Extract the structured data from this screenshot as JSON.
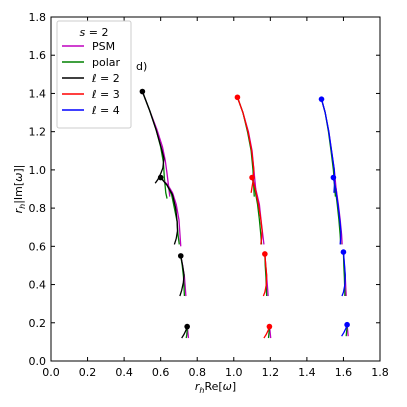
{
  "chart_data": {
    "type": "line",
    "panel_label": "d)",
    "xlabel": "r_h Re[ω]",
    "ylabel": "r_h |Im[ω]|",
    "xlim": [
      0.0,
      1.8
    ],
    "ylim": [
      0.0,
      1.8
    ],
    "xticks": [
      "0.0",
      "0.2",
      "0.4",
      "0.6",
      "0.8",
      "1.0",
      "1.2",
      "1.4",
      "1.6",
      "1.8"
    ],
    "yticks": [
      "0.0",
      "0.2",
      "0.4",
      "0.6",
      "0.8",
      "1.0",
      "1.2",
      "1.4",
      "1.6",
      "1.8"
    ],
    "grid": false,
    "legend": {
      "placement": "top-left",
      "title": "s = 2",
      "entries": [
        {
          "label": "PSM",
          "color": "#bf00bf"
        },
        {
          "label": "polar",
          "color": "#008000"
        },
        {
          "label": "ℓ = 2",
          "color": "#000000"
        },
        {
          "label": "ℓ = 3",
          "color": "#ff0000"
        },
        {
          "label": "ℓ = 4",
          "color": "#0000ff"
        }
      ]
    },
    "series": [
      {
        "group": "ℓ = 2",
        "kind": "PSM",
        "color": "#bf00bf",
        "points": [
          [
            0.5,
            1.41
          ],
          [
            0.54,
            1.31
          ],
          [
            0.58,
            1.21
          ],
          [
            0.61,
            1.12
          ],
          [
            0.625,
            1.05
          ],
          [
            0.635,
            0.98
          ],
          [
            0.645,
            0.9
          ],
          [
            0.65,
            0.86
          ]
        ]
      },
      {
        "group": "ℓ = 2",
        "kind": "polar",
        "color": "#008000",
        "points": [
          [
            0.5,
            1.41
          ],
          [
            0.54,
            1.31
          ],
          [
            0.575,
            1.21
          ],
          [
            0.6,
            1.12
          ],
          [
            0.615,
            1.04
          ],
          [
            0.62,
            0.96
          ],
          [
            0.628,
            0.88
          ],
          [
            0.635,
            0.85
          ]
        ]
      },
      {
        "group": "ℓ = 2",
        "kind": "ℓ",
        "color": "#000000",
        "points": [
          [
            0.5,
            1.41
          ],
          [
            0.54,
            1.31
          ],
          [
            0.575,
            1.21
          ],
          [
            0.605,
            1.11
          ],
          [
            0.618,
            1.06
          ],
          [
            0.612,
            1.01
          ],
          [
            0.6,
            0.98
          ],
          [
            0.585,
            0.95
          ],
          [
            0.57,
            0.93
          ]
        ]
      },
      {
        "group": "ℓ = 2",
        "kind": "PSM",
        "color": "#bf00bf",
        "points": [
          [
            0.6,
            0.96
          ],
          [
            0.64,
            0.92
          ],
          [
            0.665,
            0.88
          ],
          [
            0.685,
            0.82
          ],
          [
            0.7,
            0.74
          ],
          [
            0.705,
            0.67
          ],
          [
            0.71,
            0.6
          ]
        ]
      },
      {
        "group": "ℓ = 2",
        "kind": "polar",
        "color": "#008000",
        "points": [
          [
            0.6,
            0.96
          ],
          [
            0.635,
            0.92
          ],
          [
            0.66,
            0.87
          ],
          [
            0.675,
            0.8
          ],
          [
            0.69,
            0.73
          ],
          [
            0.695,
            0.66
          ],
          [
            0.702,
            0.61
          ]
        ]
      },
      {
        "group": "ℓ = 2",
        "kind": "ℓ",
        "color": "#000000",
        "points": [
          [
            0.6,
            0.96
          ],
          [
            0.635,
            0.92
          ],
          [
            0.665,
            0.87
          ],
          [
            0.682,
            0.8
          ],
          [
            0.69,
            0.73
          ],
          [
            0.692,
            0.68
          ],
          [
            0.685,
            0.64
          ],
          [
            0.675,
            0.61
          ]
        ]
      },
      {
        "group": "ℓ = 2",
        "kind": "PSM",
        "color": "#bf00bf",
        "points": [
          [
            0.71,
            0.55
          ],
          [
            0.72,
            0.5
          ],
          [
            0.73,
            0.44
          ],
          [
            0.735,
            0.38
          ],
          [
            0.738,
            0.34
          ]
        ]
      },
      {
        "group": "ℓ = 2",
        "kind": "polar",
        "color": "#008000",
        "points": [
          [
            0.71,
            0.55
          ],
          [
            0.718,
            0.5
          ],
          [
            0.725,
            0.44
          ],
          [
            0.728,
            0.38
          ],
          [
            0.73,
            0.34
          ]
        ]
      },
      {
        "group": "ℓ = 2",
        "kind": "ℓ",
        "color": "#000000",
        "points": [
          [
            0.71,
            0.55
          ],
          [
            0.72,
            0.5
          ],
          [
            0.728,
            0.45
          ],
          [
            0.724,
            0.41
          ],
          [
            0.715,
            0.37
          ],
          [
            0.705,
            0.34
          ]
        ]
      },
      {
        "group": "ℓ = 2",
        "kind": "PSM",
        "color": "#bf00bf",
        "points": [
          [
            0.745,
            0.18
          ],
          [
            0.748,
            0.16
          ],
          [
            0.75,
            0.14
          ],
          [
            0.752,
            0.12
          ]
        ]
      },
      {
        "group": "ℓ = 2",
        "kind": "polar",
        "color": "#008000",
        "points": [
          [
            0.745,
            0.18
          ],
          [
            0.745,
            0.16
          ],
          [
            0.743,
            0.14
          ],
          [
            0.74,
            0.12
          ]
        ]
      },
      {
        "group": "ℓ = 2",
        "kind": "ℓ",
        "color": "#000000",
        "points": [
          [
            0.745,
            0.18
          ],
          [
            0.738,
            0.16
          ],
          [
            0.728,
            0.14
          ],
          [
            0.715,
            0.12
          ]
        ]
      },
      {
        "group": "ℓ = 3",
        "kind": "PSM",
        "color": "#bf00bf",
        "points": [
          [
            1.02,
            1.38
          ],
          [
            1.05,
            1.3
          ],
          [
            1.08,
            1.2
          ],
          [
            1.1,
            1.1
          ],
          [
            1.11,
            1.0
          ],
          [
            1.12,
            0.9
          ]
        ]
      },
      {
        "group": "ℓ = 3",
        "kind": "polar",
        "color": "#008000",
        "points": [
          [
            1.02,
            1.38
          ],
          [
            1.05,
            1.3
          ],
          [
            1.075,
            1.2
          ],
          [
            1.095,
            1.1
          ],
          [
            1.105,
            1.0
          ],
          [
            1.11,
            0.9
          ],
          [
            1.112,
            0.86
          ]
        ]
      },
      {
        "group": "ℓ = 3",
        "kind": "ℓ",
        "color": "#ff0000",
        "points": [
          [
            1.02,
            1.38
          ],
          [
            1.05,
            1.3
          ],
          [
            1.078,
            1.2
          ],
          [
            1.098,
            1.1
          ],
          [
            1.11,
            1.0
          ],
          [
            1.105,
            0.94
          ],
          [
            1.095,
            0.88
          ]
        ]
      },
      {
        "group": "ℓ = 3",
        "kind": "PSM",
        "color": "#bf00bf",
        "points": [
          [
            1.1,
            0.96
          ],
          [
            1.12,
            0.9
          ],
          [
            1.14,
            0.82
          ],
          [
            1.15,
            0.73
          ],
          [
            1.16,
            0.65
          ],
          [
            1.165,
            0.61
          ]
        ]
      },
      {
        "group": "ℓ = 3",
        "kind": "polar",
        "color": "#008000",
        "points": [
          [
            1.1,
            0.96
          ],
          [
            1.115,
            0.9
          ],
          [
            1.13,
            0.82
          ],
          [
            1.14,
            0.74
          ],
          [
            1.148,
            0.66
          ],
          [
            1.152,
            0.61
          ]
        ]
      },
      {
        "group": "ℓ = 3",
        "kind": "ℓ",
        "color": "#ff0000",
        "points": [
          [
            1.1,
            0.96
          ],
          [
            1.118,
            0.9
          ],
          [
            1.135,
            0.82
          ],
          [
            1.148,
            0.74
          ],
          [
            1.155,
            0.68
          ],
          [
            1.152,
            0.64
          ],
          [
            1.148,
            0.61
          ]
        ]
      },
      {
        "group": "ℓ = 3",
        "kind": "PSM",
        "color": "#bf00bf",
        "points": [
          [
            1.17,
            0.56
          ],
          [
            1.175,
            0.5
          ],
          [
            1.18,
            0.44
          ],
          [
            1.185,
            0.38
          ],
          [
            1.188,
            0.34
          ]
        ]
      },
      {
        "group": "ℓ = 3",
        "kind": "polar",
        "color": "#008000",
        "points": [
          [
            1.17,
            0.56
          ],
          [
            1.172,
            0.5
          ],
          [
            1.176,
            0.44
          ],
          [
            1.178,
            0.38
          ],
          [
            1.18,
            0.34
          ]
        ]
      },
      {
        "group": "ℓ = 3",
        "kind": "ℓ",
        "color": "#ff0000",
        "points": [
          [
            1.17,
            0.56
          ],
          [
            1.175,
            0.5
          ],
          [
            1.18,
            0.45
          ],
          [
            1.178,
            0.4
          ],
          [
            1.17,
            0.36
          ],
          [
            1.162,
            0.34
          ]
        ]
      },
      {
        "group": "ℓ = 3",
        "kind": "PSM",
        "color": "#bf00bf",
        "points": [
          [
            1.195,
            0.18
          ],
          [
            1.198,
            0.16
          ],
          [
            1.2,
            0.14
          ],
          [
            1.202,
            0.12
          ]
        ]
      },
      {
        "group": "ℓ = 3",
        "kind": "polar",
        "color": "#008000",
        "points": [
          [
            1.195,
            0.18
          ],
          [
            1.194,
            0.16
          ],
          [
            1.192,
            0.14
          ],
          [
            1.19,
            0.12
          ]
        ]
      },
      {
        "group": "ℓ = 3",
        "kind": "ℓ",
        "color": "#ff0000",
        "points": [
          [
            1.195,
            0.18
          ],
          [
            1.188,
            0.16
          ],
          [
            1.178,
            0.14
          ],
          [
            1.165,
            0.12
          ]
        ]
      },
      {
        "group": "ℓ = 4",
        "kind": "PSM",
        "color": "#bf00bf",
        "points": [
          [
            1.48,
            1.37
          ],
          [
            1.5,
            1.3
          ],
          [
            1.52,
            1.2
          ],
          [
            1.535,
            1.1
          ],
          [
            1.55,
            1.0
          ],
          [
            1.56,
            0.9
          ],
          [
            1.565,
            0.86
          ]
        ]
      },
      {
        "group": "ℓ = 4",
        "kind": "polar",
        "color": "#008000",
        "points": [
          [
            1.48,
            1.37
          ],
          [
            1.5,
            1.3
          ],
          [
            1.518,
            1.2
          ],
          [
            1.532,
            1.1
          ],
          [
            1.545,
            1.0
          ],
          [
            1.553,
            0.9
          ],
          [
            1.556,
            0.86
          ]
        ]
      },
      {
        "group": "ℓ = 4",
        "kind": "ℓ",
        "color": "#0000ff",
        "points": [
          [
            1.48,
            1.37
          ],
          [
            1.5,
            1.3
          ],
          [
            1.52,
            1.2
          ],
          [
            1.535,
            1.1
          ],
          [
            1.55,
            1.0
          ],
          [
            1.552,
            0.94
          ],
          [
            1.548,
            0.88
          ]
        ]
      },
      {
        "group": "ℓ = 4",
        "kind": "PSM",
        "color": "#bf00bf",
        "points": [
          [
            1.545,
            0.96
          ],
          [
            1.56,
            0.9
          ],
          [
            1.572,
            0.82
          ],
          [
            1.582,
            0.74
          ],
          [
            1.59,
            0.66
          ],
          [
            1.593,
            0.61
          ]
        ]
      },
      {
        "group": "ℓ = 4",
        "kind": "polar",
        "color": "#008000",
        "points": [
          [
            1.545,
            0.96
          ],
          [
            1.556,
            0.9
          ],
          [
            1.566,
            0.82
          ],
          [
            1.575,
            0.74
          ],
          [
            1.582,
            0.66
          ],
          [
            1.585,
            0.61
          ]
        ]
      },
      {
        "group": "ℓ = 4",
        "kind": "ℓ",
        "color": "#0000ff",
        "points": [
          [
            1.545,
            0.96
          ],
          [
            1.558,
            0.9
          ],
          [
            1.57,
            0.82
          ],
          [
            1.58,
            0.74
          ],
          [
            1.586,
            0.68
          ],
          [
            1.585,
            0.64
          ],
          [
            1.582,
            0.61
          ]
        ]
      },
      {
        "group": "ℓ = 4",
        "kind": "PSM",
        "color": "#bf00bf",
        "points": [
          [
            1.6,
            0.57
          ],
          [
            1.605,
            0.5
          ],
          [
            1.61,
            0.44
          ],
          [
            1.613,
            0.38
          ],
          [
            1.615,
            0.34
          ]
        ]
      },
      {
        "group": "ℓ = 4",
        "kind": "polar",
        "color": "#008000",
        "points": [
          [
            1.6,
            0.57
          ],
          [
            1.602,
            0.5
          ],
          [
            1.605,
            0.44
          ],
          [
            1.607,
            0.38
          ],
          [
            1.608,
            0.34
          ]
        ]
      },
      {
        "group": "ℓ = 4",
        "kind": "ℓ",
        "color": "#0000ff",
        "points": [
          [
            1.6,
            0.57
          ],
          [
            1.606,
            0.5
          ],
          [
            1.61,
            0.45
          ],
          [
            1.608,
            0.4
          ],
          [
            1.6,
            0.36
          ],
          [
            1.592,
            0.34
          ]
        ]
      },
      {
        "group": "ℓ = 4",
        "kind": "PSM",
        "color": "#bf00bf",
        "points": [
          [
            1.62,
            0.19
          ],
          [
            1.622,
            0.17
          ],
          [
            1.624,
            0.15
          ],
          [
            1.626,
            0.13
          ]
        ]
      },
      {
        "group": "ℓ = 4",
        "kind": "polar",
        "color": "#008000",
        "points": [
          [
            1.62,
            0.19
          ],
          [
            1.619,
            0.17
          ],
          [
            1.617,
            0.15
          ],
          [
            1.615,
            0.13
          ]
        ]
      },
      {
        "group": "ℓ = 4",
        "kind": "ℓ",
        "color": "#0000ff",
        "points": [
          [
            1.62,
            0.19
          ],
          [
            1.613,
            0.17
          ],
          [
            1.603,
            0.15
          ],
          [
            1.59,
            0.13
          ]
        ]
      }
    ],
    "markers": [
      {
        "group": "ℓ = 2",
        "color": "#000000",
        "x": 0.5,
        "y": 1.41
      },
      {
        "group": "ℓ = 2",
        "color": "#000000",
        "x": 0.6,
        "y": 0.96
      },
      {
        "group": "ℓ = 2",
        "color": "#000000",
        "x": 0.71,
        "y": 0.55
      },
      {
        "group": "ℓ = 2",
        "color": "#000000",
        "x": 0.745,
        "y": 0.18
      },
      {
        "group": "ℓ = 3",
        "color": "#ff0000",
        "x": 1.02,
        "y": 1.38
      },
      {
        "group": "ℓ = 3",
        "color": "#ff0000",
        "x": 1.1,
        "y": 0.96
      },
      {
        "group": "ℓ = 3",
        "color": "#ff0000",
        "x": 1.17,
        "y": 0.56
      },
      {
        "group": "ℓ = 3",
        "color": "#ff0000",
        "x": 1.195,
        "y": 0.18
      },
      {
        "group": "ℓ = 4",
        "color": "#0000ff",
        "x": 1.48,
        "y": 1.37
      },
      {
        "group": "ℓ = 4",
        "color": "#0000ff",
        "x": 1.545,
        "y": 0.96
      },
      {
        "group": "ℓ = 4",
        "color": "#0000ff",
        "x": 1.6,
        "y": 0.57
      },
      {
        "group": "ℓ = 4",
        "color": "#0000ff",
        "x": 1.62,
        "y": 0.19
      }
    ]
  }
}
